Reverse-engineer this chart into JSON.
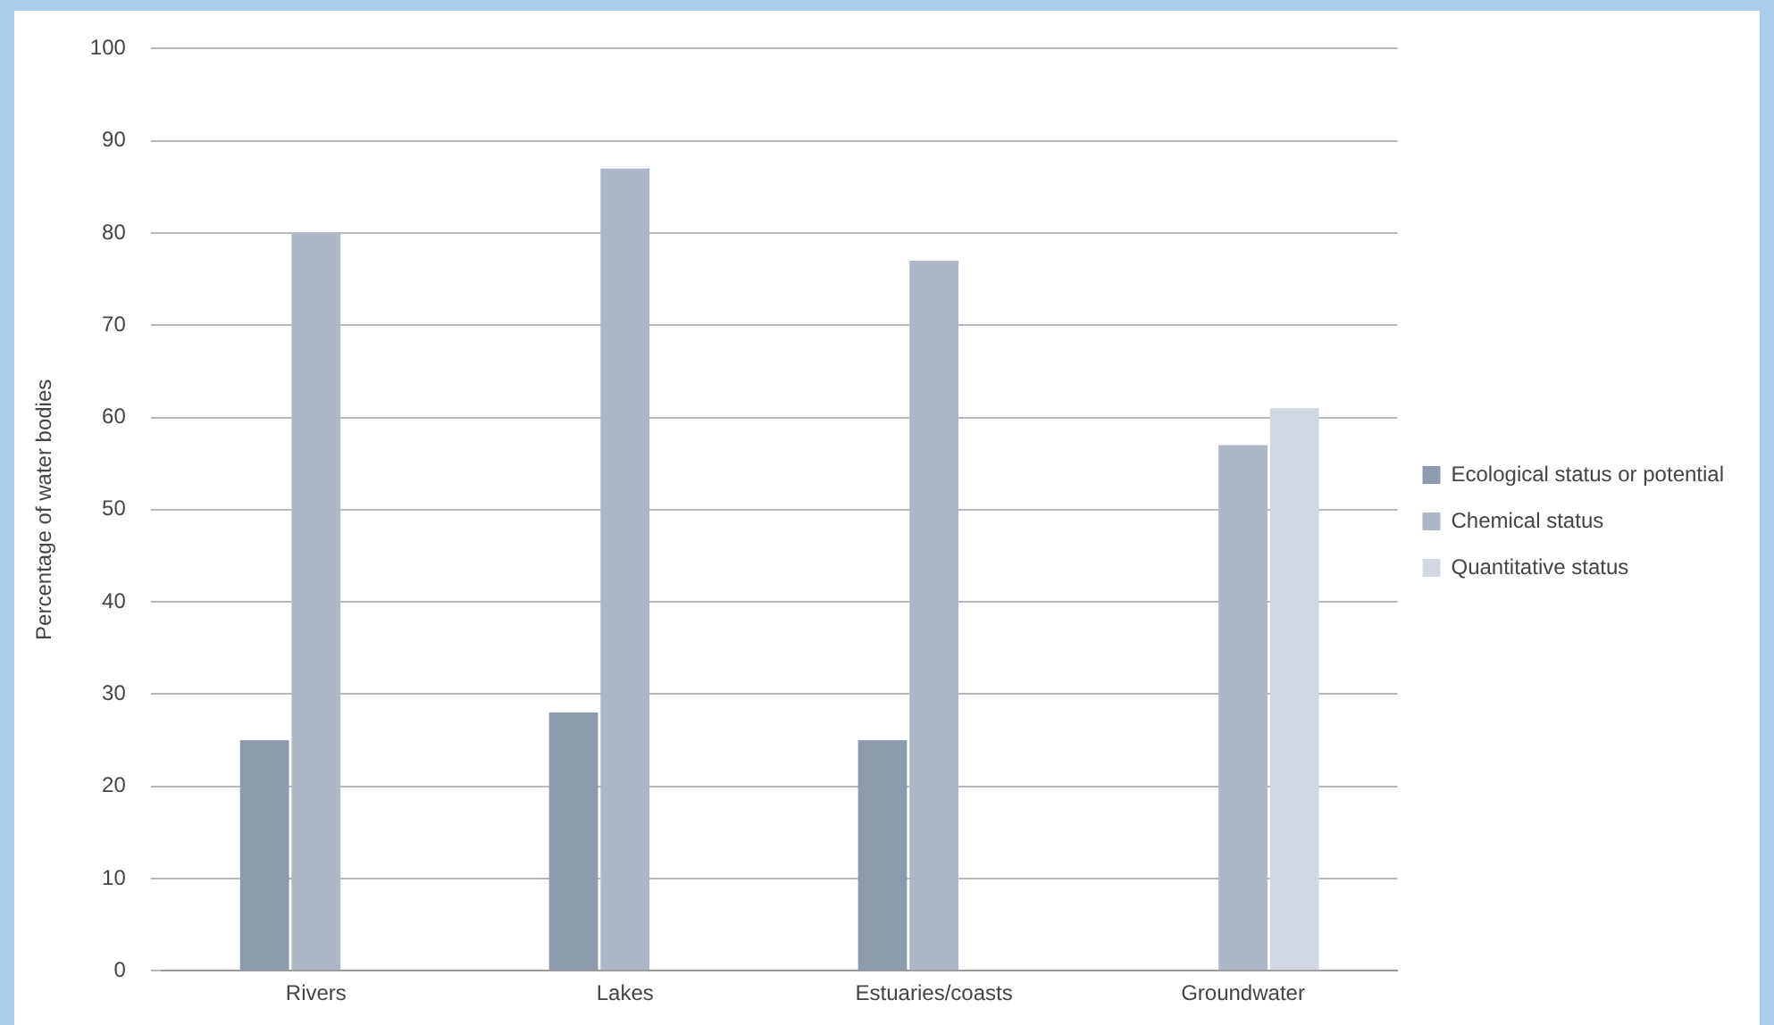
{
  "chart_data": {
    "type": "bar",
    "ylabel": "Percentage of water bodies",
    "categories": [
      "Rivers",
      "Lakes",
      "Estuaries/coasts",
      "Groundwater"
    ],
    "series": [
      {
        "name": "Ecological status or potential",
        "color": "#8e9bad",
        "values": [
          25,
          28,
          25,
          null
        ]
      },
      {
        "name": "Chemical status",
        "color": "#adb7c6",
        "values": [
          80,
          87,
          77,
          57
        ]
      },
      {
        "name": "Quantitative status",
        "color": "#d2d8e1",
        "values": [
          null,
          null,
          null,
          61
        ]
      }
    ],
    "ylim": [
      0,
      100
    ],
    "yticks": [
      0,
      10,
      20,
      30,
      40,
      50,
      60,
      70,
      80,
      90,
      100
    ],
    "grid": "y",
    "legend": "right"
  }
}
